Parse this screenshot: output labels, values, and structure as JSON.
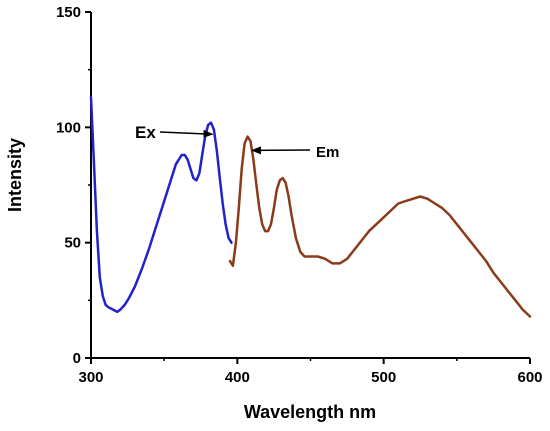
{
  "chart_data": {
    "type": "line",
    "title": "",
    "xlabel": "Wavelength nm",
    "ylabel": "Intensity",
    "xlim": [
      300,
      600
    ],
    "ylim": [
      0,
      150
    ],
    "xticks": [
      300,
      400,
      500,
      600
    ],
    "yticks": [
      0,
      50,
      100,
      150
    ],
    "grid": false,
    "series": [
      {
        "name": "Ex",
        "color": "#2222cc",
        "x": [
          300,
          302,
          304,
          306,
          308,
          310,
          312,
          315,
          318,
          320,
          323,
          326,
          330,
          335,
          340,
          345,
          350,
          354,
          358,
          362,
          364,
          366,
          368,
          370,
          372,
          374,
          376,
          378,
          380,
          382,
          384,
          386,
          388,
          390,
          392,
          394,
          396
        ],
        "y": [
          113,
          85,
          55,
          35,
          27,
          23,
          22,
          21,
          20,
          21,
          23,
          26,
          31,
          39,
          48,
          58,
          68,
          76,
          84,
          88,
          88,
          86,
          82,
          78,
          77,
          80,
          88,
          96,
          101,
          102,
          99,
          90,
          78,
          67,
          58,
          52,
          50
        ]
      },
      {
        "name": "Em",
        "color": "#8b3a1a",
        "x": [
          395,
          397,
          399,
          401,
          403,
          405,
          407,
          409,
          411,
          413,
          415,
          417,
          419,
          421,
          423,
          425,
          427,
          429,
          431,
          433,
          435,
          437,
          440,
          443,
          446,
          450,
          455,
          460,
          465,
          470,
          475,
          480,
          485,
          490,
          495,
          500,
          505,
          510,
          515,
          520,
          525,
          530,
          535,
          540,
          545,
          550,
          555,
          560,
          565,
          570,
          575,
          580,
          585,
          590,
          595,
          600
        ],
        "y": [
          42,
          40,
          50,
          65,
          82,
          93,
          96,
          94,
          86,
          75,
          65,
          58,
          55,
          55,
          58,
          65,
          73,
          77,
          78,
          76,
          70,
          62,
          52,
          46,
          44,
          44,
          44,
          43,
          41,
          41,
          43,
          47,
          51,
          55,
          58,
          61,
          64,
          67,
          68,
          69,
          70,
          69,
          67,
          65,
          62,
          58,
          54,
          50,
          46,
          42,
          37,
          33,
          29,
          25,
          21,
          18
        ]
      }
    ],
    "annotations": [
      {
        "text": "Ex",
        "target_x": 383,
        "target_y": 97
      },
      {
        "text": "Em",
        "target_x": 410,
        "target_y": 90
      }
    ]
  }
}
